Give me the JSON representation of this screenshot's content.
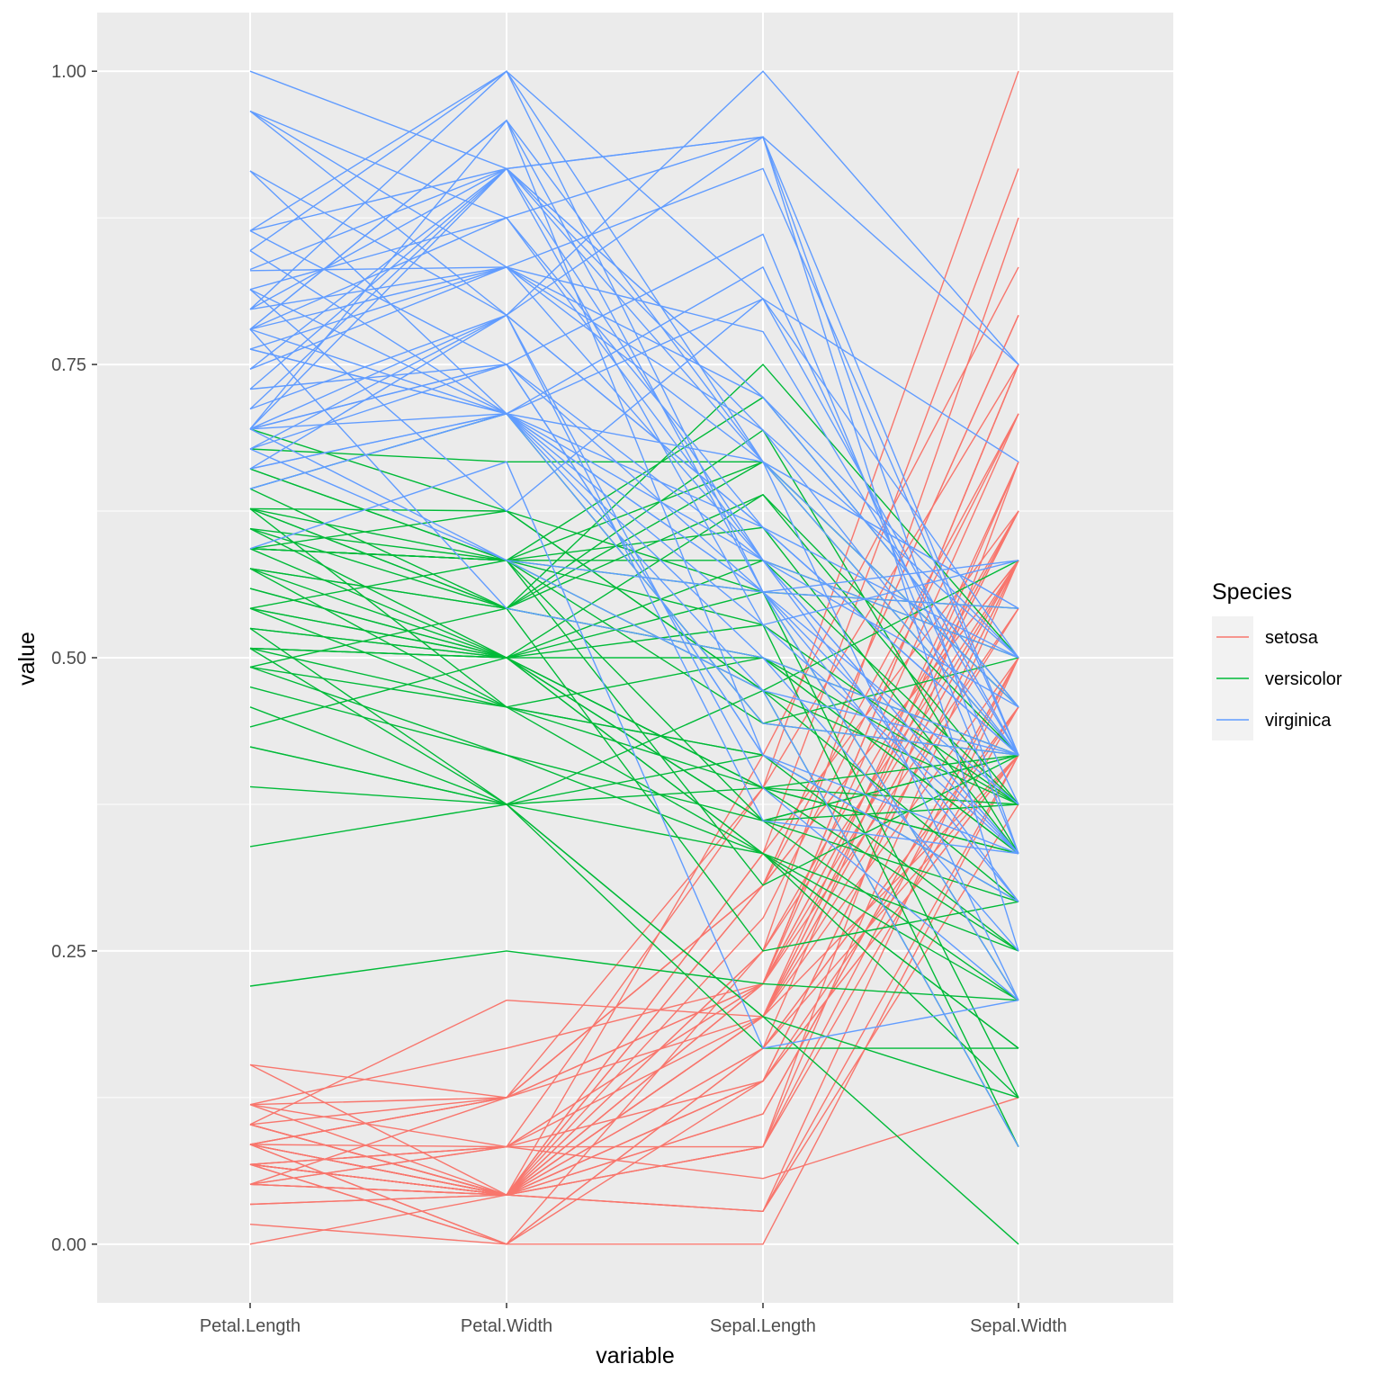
{
  "chart_data": {
    "type": "line",
    "subtype": "parallel-coordinates",
    "title": "",
    "xlabel": "variable",
    "ylabel": "value",
    "categories": [
      "Petal.Length",
      "Petal.Width",
      "Sepal.Length",
      "Sepal.Width"
    ],
    "ylim": [
      -0.05,
      1.05
    ],
    "yticks": [
      0.0,
      0.25,
      0.5,
      0.75,
      1.0
    ],
    "ytick_labels": [
      "0.00",
      "0.25",
      "0.50",
      "0.75",
      "1.00"
    ],
    "grid": true,
    "legend": {
      "title": "Species",
      "position": "right"
    },
    "colors": {
      "setosa": "#F8766D",
      "versicolor": "#00BA38",
      "virginica": "#619CFF"
    },
    "series": [
      {
        "name": "setosa",
        "lines": [
          [
            0.068,
            0.042,
            0.222,
            0.625
          ],
          [
            0.068,
            0.042,
            0.167,
            0.417
          ],
          [
            0.051,
            0.042,
            0.111,
            0.5
          ],
          [
            0.085,
            0.042,
            0.083,
            0.458
          ],
          [
            0.068,
            0.042,
            0.194,
            0.667
          ],
          [
            0.119,
            0.125,
            0.306,
            0.792
          ],
          [
            0.068,
            0.083,
            0.083,
            0.583
          ],
          [
            0.085,
            0.042,
            0.194,
            0.583
          ],
          [
            0.068,
            0.042,
            0.028,
            0.375
          ],
          [
            0.085,
            0.0,
            0.167,
            0.458
          ],
          [
            0.085,
            0.042,
            0.306,
            0.708
          ],
          [
            0.102,
            0.042,
            0.139,
            0.583
          ],
          [
            0.068,
            0.0,
            0.139,
            0.417
          ],
          [
            0.017,
            0.0,
            0.0,
            0.417
          ],
          [
            0.034,
            0.042,
            0.417,
            0.833
          ],
          [
            0.085,
            0.125,
            0.389,
            1.0
          ],
          [
            0.051,
            0.125,
            0.306,
            0.792
          ],
          [
            0.068,
            0.083,
            0.222,
            0.625
          ],
          [
            0.119,
            0.083,
            0.389,
            0.75
          ],
          [
            0.085,
            0.083,
            0.222,
            0.75
          ],
          [
            0.119,
            0.042,
            0.306,
            0.583
          ],
          [
            0.085,
            0.125,
            0.222,
            0.708
          ],
          [
            0.0,
            0.042,
            0.083,
            0.667
          ],
          [
            0.119,
            0.167,
            0.222,
            0.542
          ],
          [
            0.153,
            0.042,
            0.139,
            0.583
          ],
          [
            0.102,
            0.042,
            0.194,
            0.417
          ],
          [
            0.102,
            0.125,
            0.194,
            0.583
          ],
          [
            0.085,
            0.042,
            0.25,
            0.625
          ],
          [
            0.068,
            0.042,
            0.25,
            0.583
          ],
          [
            0.102,
            0.042,
            0.111,
            0.5
          ],
          [
            0.102,
            0.042,
            0.139,
            0.458
          ],
          [
            0.085,
            0.125,
            0.306,
            0.583
          ],
          [
            0.085,
            0.0,
            0.25,
            0.875
          ],
          [
            0.068,
            0.042,
            0.333,
            0.917
          ],
          [
            0.085,
            0.042,
            0.167,
            0.458
          ],
          [
            0.034,
            0.042,
            0.194,
            0.5
          ],
          [
            0.051,
            0.042,
            0.333,
            0.625
          ],
          [
            0.068,
            0.0,
            0.167,
            0.667
          ],
          [
            0.051,
            0.042,
            0.028,
            0.417
          ],
          [
            0.085,
            0.042,
            0.222,
            0.583
          ],
          [
            0.051,
            0.083,
            0.194,
            0.625
          ],
          [
            0.051,
            0.083,
            0.056,
            0.125
          ],
          [
            0.051,
            0.042,
            0.028,
            0.5
          ],
          [
            0.102,
            0.208,
            0.194,
            0.625
          ],
          [
            0.153,
            0.125,
            0.222,
            0.75
          ],
          [
            0.068,
            0.083,
            0.139,
            0.417
          ],
          [
            0.102,
            0.042,
            0.222,
            0.75
          ],
          [
            0.068,
            0.042,
            0.083,
            0.5
          ],
          [
            0.085,
            0.042,
            0.278,
            0.708
          ],
          [
            0.068,
            0.042,
            0.194,
            0.542
          ]
        ]
      },
      {
        "name": "versicolor",
        "lines": [
          [
            0.627,
            0.542,
            0.75,
            0.5
          ],
          [
            0.593,
            0.583,
            0.583,
            0.5
          ],
          [
            0.661,
            0.583,
            0.722,
            0.458
          ],
          [
            0.508,
            0.5,
            0.333,
            0.125
          ],
          [
            0.61,
            0.583,
            0.611,
            0.333
          ],
          [
            0.593,
            0.5,
            0.389,
            0.333
          ],
          [
            0.627,
            0.625,
            0.556,
            0.542
          ],
          [
            0.39,
            0.375,
            0.167,
            0.167
          ],
          [
            0.61,
            0.5,
            0.639,
            0.375
          ],
          [
            0.492,
            0.542,
            0.25,
            0.292
          ],
          [
            0.424,
            0.375,
            0.194,
            0.0
          ],
          [
            0.542,
            0.583,
            0.444,
            0.417
          ],
          [
            0.508,
            0.375,
            0.472,
            0.083
          ],
          [
            0.627,
            0.542,
            0.5,
            0.375
          ],
          [
            0.441,
            0.5,
            0.361,
            0.375
          ],
          [
            0.576,
            0.542,
            0.667,
            0.458
          ],
          [
            0.593,
            0.583,
            0.361,
            0.417
          ],
          [
            0.525,
            0.375,
            0.417,
            0.292
          ],
          [
            0.593,
            0.583,
            0.528,
            0.083
          ],
          [
            0.492,
            0.417,
            0.361,
            0.208
          ],
          [
            0.644,
            0.708,
            0.444,
            0.5
          ],
          [
            0.508,
            0.5,
            0.5,
            0.333
          ],
          [
            0.661,
            0.583,
            0.556,
            0.208
          ],
          [
            0.627,
            0.458,
            0.5,
            0.333
          ],
          [
            0.559,
            0.5,
            0.583,
            0.375
          ],
          [
            0.576,
            0.542,
            0.639,
            0.417
          ],
          [
            0.644,
            0.542,
            0.694,
            0.333
          ],
          [
            0.678,
            0.667,
            0.667,
            0.417
          ],
          [
            0.593,
            0.583,
            0.472,
            0.375
          ],
          [
            0.424,
            0.375,
            0.389,
            0.25
          ],
          [
            0.475,
            0.417,
            0.333,
            0.167
          ],
          [
            0.458,
            0.375,
            0.333,
            0.167
          ],
          [
            0.492,
            0.458,
            0.417,
            0.292
          ],
          [
            0.695,
            0.625,
            0.472,
            0.292
          ],
          [
            0.593,
            0.583,
            0.306,
            0.417
          ],
          [
            0.593,
            0.625,
            0.472,
            0.583
          ],
          [
            0.627,
            0.583,
            0.667,
            0.458
          ],
          [
            0.576,
            0.5,
            0.556,
            0.125
          ],
          [
            0.525,
            0.5,
            0.361,
            0.417
          ],
          [
            0.508,
            0.5,
            0.333,
            0.208
          ],
          [
            0.576,
            0.458,
            0.333,
            0.25
          ],
          [
            0.61,
            0.542,
            0.5,
            0.417
          ],
          [
            0.508,
            0.458,
            0.417,
            0.25
          ],
          [
            0.339,
            0.375,
            0.194,
            0.125
          ],
          [
            0.542,
            0.5,
            0.361,
            0.292
          ],
          [
            0.542,
            0.458,
            0.389,
            0.417
          ],
          [
            0.542,
            0.5,
            0.389,
            0.375
          ],
          [
            0.559,
            0.5,
            0.528,
            0.375
          ],
          [
            0.22,
            0.25,
            0.222,
            0.208
          ],
          [
            0.525,
            0.5,
            0.389,
            0.333
          ]
        ]
      },
      {
        "name": "virginica",
        "lines": [
          [
            0.847,
            1.0,
            0.556,
            0.542
          ],
          [
            0.695,
            0.75,
            0.417,
            0.292
          ],
          [
            0.83,
            0.833,
            0.778,
            0.417
          ],
          [
            0.78,
            0.708,
            0.556,
            0.375
          ],
          [
            0.814,
            0.875,
            0.611,
            0.417
          ],
          [
            0.966,
            0.833,
            0.917,
            0.417
          ],
          [
            0.593,
            0.667,
            0.167,
            0.208
          ],
          [
            0.915,
            0.708,
            0.833,
            0.375
          ],
          [
            0.814,
            0.708,
            0.667,
            0.208
          ],
          [
            0.864,
            1.0,
            0.806,
            0.667
          ],
          [
            0.695,
            0.792,
            0.611,
            0.5
          ],
          [
            0.729,
            0.75,
            0.583,
            0.292
          ],
          [
            0.763,
            0.833,
            0.694,
            0.417
          ],
          [
            0.678,
            0.792,
            0.389,
            0.208
          ],
          [
            0.695,
            0.958,
            0.417,
            0.333
          ],
          [
            0.729,
            0.917,
            0.583,
            0.5
          ],
          [
            0.763,
            0.708,
            0.611,
            0.417
          ],
          [
            0.966,
            0.875,
            0.944,
            0.75
          ],
          [
            1.0,
            0.917,
            0.944,
            0.25
          ],
          [
            0.678,
            0.583,
            0.472,
            0.083
          ],
          [
            0.797,
            0.917,
            0.722,
            0.5
          ],
          [
            0.661,
            0.792,
            0.361,
            0.333
          ],
          [
            0.966,
            0.792,
            0.944,
            0.333
          ],
          [
            0.661,
            0.708,
            0.556,
            0.292
          ],
          [
            0.797,
            0.833,
            0.667,
            0.542
          ],
          [
            0.847,
            0.708,
            0.806,
            0.5
          ],
          [
            0.644,
            0.708,
            0.528,
            0.333
          ],
          [
            0.661,
            0.708,
            0.5,
            0.417
          ],
          [
            0.78,
            0.833,
            0.583,
            0.333
          ],
          [
            0.814,
            0.625,
            0.806,
            0.417
          ],
          [
            0.864,
            0.75,
            0.861,
            0.333
          ],
          [
            0.915,
            0.792,
            1.0,
            0.75
          ],
          [
            0.78,
            0.875,
            0.583,
            0.333
          ],
          [
            0.695,
            0.583,
            0.556,
            0.333
          ],
          [
            0.78,
            0.542,
            0.5,
            0.25
          ],
          [
            0.864,
            0.917,
            0.944,
            0.417
          ],
          [
            0.78,
            0.958,
            0.556,
            0.583
          ],
          [
            0.763,
            0.708,
            0.583,
            0.458
          ],
          [
            0.644,
            0.708,
            0.472,
            0.417
          ],
          [
            0.746,
            0.833,
            0.722,
            0.458
          ],
          [
            0.78,
            0.958,
            0.667,
            0.458
          ],
          [
            0.695,
            0.917,
            0.722,
            0.458
          ],
          [
            0.695,
            0.75,
            0.417,
            0.292
          ],
          [
            0.831,
            0.917,
            0.694,
            0.5
          ],
          [
            0.797,
            1.0,
            0.667,
            0.542
          ],
          [
            0.712,
            0.917,
            0.667,
            0.417
          ],
          [
            0.678,
            0.75,
            0.556,
            0.208
          ],
          [
            0.712,
            0.792,
            0.611,
            0.417
          ],
          [
            0.746,
            0.917,
            0.528,
            0.583
          ],
          [
            0.695,
            0.708,
            0.444,
            0.417
          ]
        ]
      }
    ]
  }
}
